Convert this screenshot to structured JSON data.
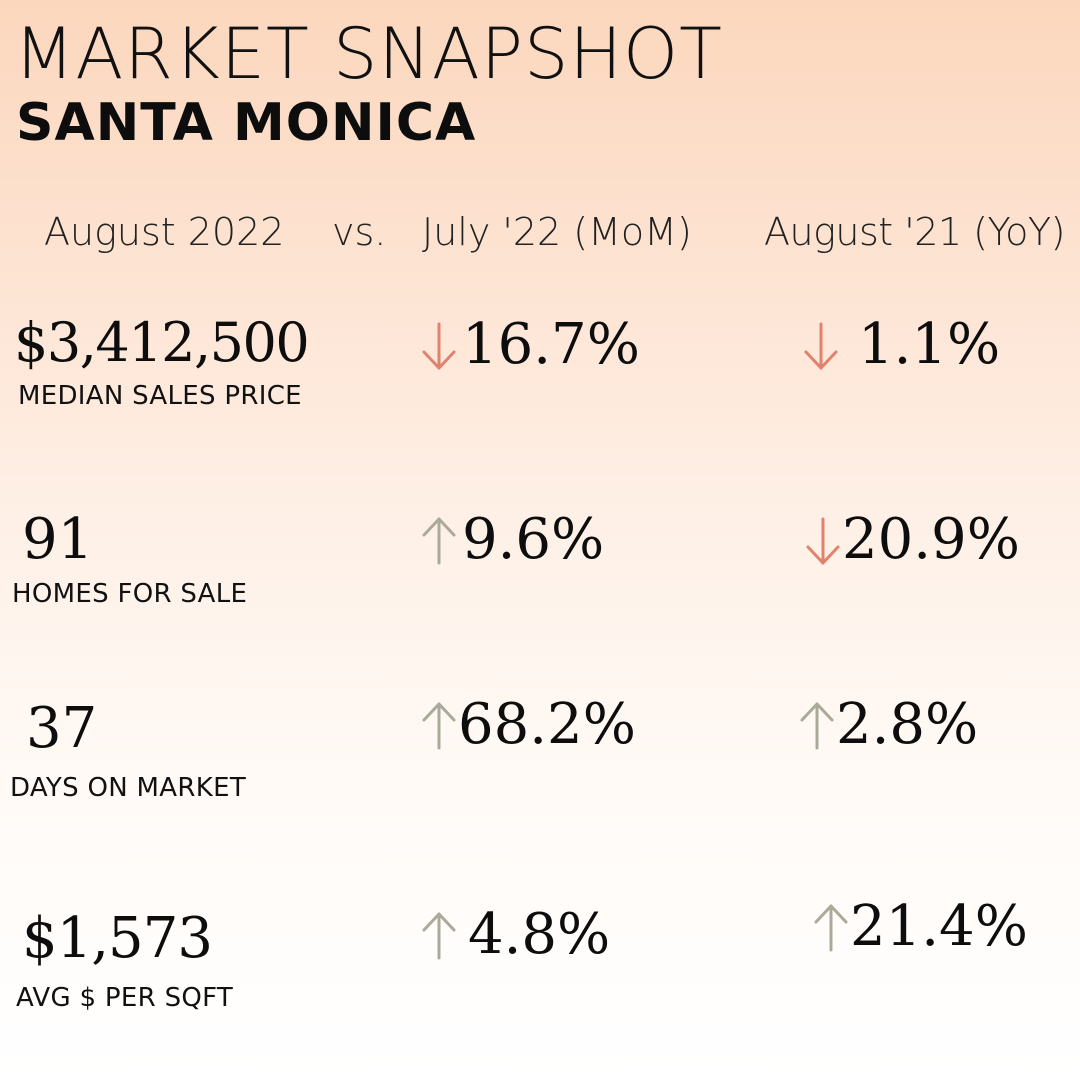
{
  "title": "MARKET SNAPSHOT",
  "subtitle": "SANTA MONICA",
  "header": {
    "current": "August 2022",
    "vs": "vs.",
    "mom": "July '22 (MoM)",
    "yoy": "August '21 (YoY)"
  },
  "colors": {
    "down": "#e0826d",
    "up": "#aaaa9a"
  },
  "metrics": [
    {
      "value": "$3,412,500",
      "label": "MEDIAN SALES PRICE",
      "mom": {
        "pct": "16.7%",
        "direction": "down",
        "icon": "arrow-down-icon"
      },
      "yoy": {
        "pct": "1.1%",
        "direction": "down",
        "icon": "arrow-down-icon"
      }
    },
    {
      "value": "91",
      "label": "HOMES FOR SALE",
      "mom": {
        "pct": "9.6%",
        "direction": "up",
        "icon": "arrow-up-icon"
      },
      "yoy": {
        "pct": "20.9%",
        "direction": "down",
        "icon": "arrow-down-icon"
      }
    },
    {
      "value": "37",
      "label": "DAYS ON MARKET",
      "mom": {
        "pct": "68.2%",
        "direction": "up",
        "icon": "arrow-up-icon"
      },
      "yoy": {
        "pct": "2.8%",
        "direction": "up",
        "icon": "arrow-up-icon"
      }
    },
    {
      "value": "$1,573",
      "label": "AVG $ PER SQFT",
      "mom": {
        "pct": "4.8%",
        "direction": "up",
        "icon": "arrow-up-icon"
      },
      "yoy": {
        "pct": "21.4%",
        "direction": "up",
        "icon": "arrow-up-icon"
      }
    }
  ]
}
